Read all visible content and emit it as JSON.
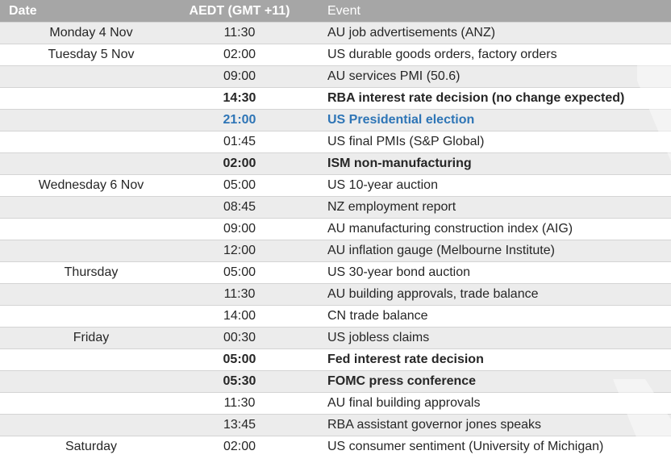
{
  "header": {
    "date": "Date",
    "time": "AEDT (GMT +11)",
    "event": "Event"
  },
  "colors": {
    "header_bg": "#a6a6a6",
    "stripe": "#ececec",
    "highlight_text": "#2e75b6"
  },
  "rows": [
    {
      "date": "Monday 4 Nov",
      "time": "11:30",
      "event": "AU job advertisements (ANZ)",
      "style": "normal"
    },
    {
      "date": "Tuesday 5 Nov",
      "time": "02:00",
      "event": "US durable goods orders, factory orders",
      "style": "normal"
    },
    {
      "date": "",
      "time": "09:00",
      "event": "AU services PMI (50.6)",
      "style": "normal"
    },
    {
      "date": "",
      "time": "14:30",
      "event": "RBA interest rate decision (no change expected)",
      "style": "bold"
    },
    {
      "date": "",
      "time": "21:00",
      "event": "US Presidential election",
      "style": "highlight"
    },
    {
      "date": "",
      "time": "01:45",
      "event": "US final PMIs (S&P Global)",
      "style": "normal"
    },
    {
      "date": "",
      "time": "02:00",
      "event": "ISM non-manufacturing",
      "style": "bold"
    },
    {
      "date": "Wednesday 6 Nov",
      "time": "05:00",
      "event": "US 10-year auction",
      "style": "normal"
    },
    {
      "date": "",
      "time": "08:45",
      "event": "NZ employment report",
      "style": "normal"
    },
    {
      "date": "",
      "time": "09:00",
      "event": "AU manufacturing construction index (AIG)",
      "style": "normal"
    },
    {
      "date": "",
      "time": "12:00",
      "event": "AU inflation gauge (Melbourne Institute)",
      "style": "normal"
    },
    {
      "date": "Thursday",
      "time": "05:00",
      "event": "US 30-year bond auction",
      "style": "normal"
    },
    {
      "date": "",
      "time": "11:30",
      "event": "AU building approvals, trade balance",
      "style": "normal"
    },
    {
      "date": "",
      "time": "14:00",
      "event": "CN trade balance",
      "style": "normal"
    },
    {
      "date": "Friday",
      "time": "00:30",
      "event": "US jobless claims",
      "style": "normal"
    },
    {
      "date": "",
      "time": "05:00",
      "event": "Fed interest rate decision",
      "style": "bold"
    },
    {
      "date": "",
      "time": "05:30",
      "event": "FOMC press conference",
      "style": "bold"
    },
    {
      "date": "",
      "time": "11:30",
      "event": "AU final building approvals",
      "style": "normal"
    },
    {
      "date": "",
      "time": "13:45",
      "event": "RBA assistant governor jones speaks",
      "style": "normal"
    },
    {
      "date": "Saturday",
      "time": "02:00",
      "event": "US consumer sentiment (University of Michigan)",
      "style": "normal"
    }
  ]
}
